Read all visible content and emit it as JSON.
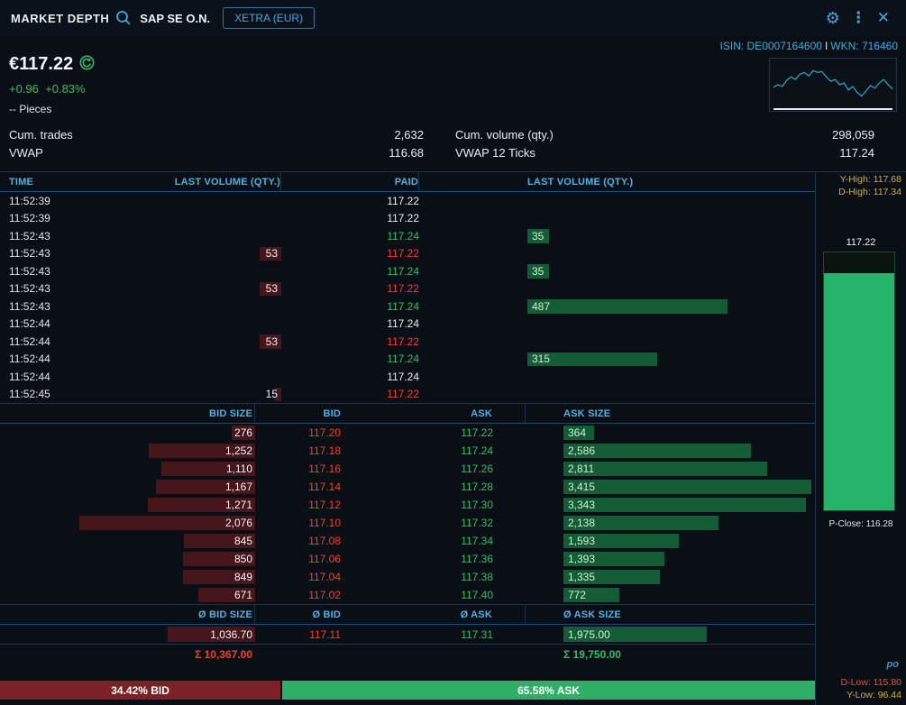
{
  "header": {
    "title": "MARKET DEPTH",
    "instrument": "SAP SE O.N.",
    "exchange": "XETRA (EUR)"
  },
  "ids": {
    "isin": "ISIN: DE0007164600",
    "sep": "I",
    "wkn": "WKN: 716460"
  },
  "quote": {
    "price": "€117.22",
    "change_abs": "+0.96",
    "change_pct": "+0.83%",
    "pieces": "-- Pieces"
  },
  "stats": {
    "cum_trades_label": "Cum. trades",
    "cum_trades": "2,632",
    "cum_volume_label": "Cum. volume (qty.)",
    "cum_volume": "298,059",
    "vwap_label": "VWAP",
    "vwap": "116.68",
    "vwap12_label": "VWAP 12 Ticks",
    "vwap12": "117.24"
  },
  "tape": {
    "headers": {
      "time": "TIME",
      "bid_vol": "LAST VOLUME (QTY.)",
      "paid": "PAID",
      "ask_vol": "LAST VOLUME (QTY.)"
    },
    "rows": [
      {
        "time": "11:52:39",
        "bid_vol": null,
        "bid_vol_val": 0,
        "paid": "117.22",
        "paid_color": "white",
        "ask_vol": null,
        "ask_vol_val": 0
      },
      {
        "time": "11:52:39",
        "bid_vol": null,
        "bid_vol_val": 0,
        "paid": "117.22",
        "paid_color": "white",
        "ask_vol": null,
        "ask_vol_val": 0
      },
      {
        "time": "11:52:43",
        "bid_vol": null,
        "bid_vol_val": 0,
        "paid": "117.24",
        "paid_color": "green",
        "ask_vol": "35",
        "ask_vol_val": 35
      },
      {
        "time": "11:52:43",
        "bid_vol": "53",
        "bid_vol_val": 53,
        "paid": "117.22",
        "paid_color": "red",
        "ask_vol": null,
        "ask_vol_val": 0
      },
      {
        "time": "11:52:43",
        "bid_vol": null,
        "bid_vol_val": 0,
        "paid": "117.24",
        "paid_color": "green",
        "ask_vol": "35",
        "ask_vol_val": 35
      },
      {
        "time": "11:52:43",
        "bid_vol": "53",
        "bid_vol_val": 53,
        "paid": "117.22",
        "paid_color": "red",
        "ask_vol": null,
        "ask_vol_val": 0
      },
      {
        "time": "11:52:43",
        "bid_vol": null,
        "bid_vol_val": 0,
        "paid": "117.24",
        "paid_color": "green",
        "ask_vol": "487",
        "ask_vol_val": 487
      },
      {
        "time": "11:52:44",
        "bid_vol": null,
        "bid_vol_val": 0,
        "paid": "117.24",
        "paid_color": "white",
        "ask_vol": null,
        "ask_vol_val": 0
      },
      {
        "time": "11:52:44",
        "bid_vol": "53",
        "bid_vol_val": 53,
        "paid": "117.22",
        "paid_color": "red",
        "ask_vol": null,
        "ask_vol_val": 0
      },
      {
        "time": "11:52:44",
        "bid_vol": null,
        "bid_vol_val": 0,
        "paid": "117.24",
        "paid_color": "green",
        "ask_vol": "315",
        "ask_vol_val": 315
      },
      {
        "time": "11:52:44",
        "bid_vol": null,
        "bid_vol_val": 0,
        "paid": "117.24",
        "paid_color": "white",
        "ask_vol": null,
        "ask_vol_val": 0
      },
      {
        "time": "11:52:45",
        "bid_vol": "15",
        "bid_vol_val": 15,
        "paid": "117.22",
        "paid_color": "red",
        "ask_vol": null,
        "ask_vol_val": 0
      }
    ]
  },
  "depth": {
    "headers": {
      "bid_size": "BID SIZE",
      "bid": "BID",
      "ask": "ASK",
      "ask_size": "ASK SIZE"
    },
    "rows": [
      {
        "bid_size": "276",
        "bid_size_val": 276,
        "bid": "117.20",
        "ask": "117.22",
        "ask_size": "364",
        "ask_size_val": 364
      },
      {
        "bid_size": "1,252",
        "bid_size_val": 1252,
        "bid": "117.18",
        "ask": "117.24",
        "ask_size": "2,586",
        "ask_size_val": 2586
      },
      {
        "bid_size": "1,110",
        "bid_size_val": 1110,
        "bid": "117.16",
        "ask": "117.26",
        "ask_size": "2,811",
        "ask_size_val": 2811
      },
      {
        "bid_size": "1,167",
        "bid_size_val": 1167,
        "bid": "117.14",
        "ask": "117.28",
        "ask_size": "3,415",
        "ask_size_val": 3415
      },
      {
        "bid_size": "1,271",
        "bid_size_val": 1271,
        "bid": "117.12",
        "ask": "117.30",
        "ask_size": "3,343",
        "ask_size_val": 3343
      },
      {
        "bid_size": "2,076",
        "bid_size_val": 2076,
        "bid": "117.10",
        "ask": "117.32",
        "ask_size": "2,138",
        "ask_size_val": 2138
      },
      {
        "bid_size": "845",
        "bid_size_val": 845,
        "bid": "117.08",
        "ask": "117.34",
        "ask_size": "1,593",
        "ask_size_val": 1593
      },
      {
        "bid_size": "850",
        "bid_size_val": 850,
        "bid": "117.06",
        "ask": "117.36",
        "ask_size": "1,393",
        "ask_size_val": 1393
      },
      {
        "bid_size": "849",
        "bid_size_val": 849,
        "bid": "117.04",
        "ask": "117.38",
        "ask_size": "1,335",
        "ask_size_val": 1335
      },
      {
        "bid_size": "671",
        "bid_size_val": 671,
        "bid": "117.02",
        "ask": "117.40",
        "ask_size": "772",
        "ask_size_val": 772
      }
    ],
    "avg_headers": {
      "bid_size": "Ø BID SIZE",
      "bid": "Ø BID",
      "ask": "Ø ASK",
      "ask_size": "Ø ASK SIZE"
    },
    "avg": {
      "bid_size": "1,036.70",
      "bid_size_val": 1036.7,
      "bid": "117.11",
      "ask": "117.31",
      "ask_size": "1,975.00",
      "ask_size_val": 1975
    },
    "sum_bid": "Σ 10,367.00",
    "sum_ask": "Σ 19,750.00"
  },
  "footer": {
    "bid_label": "34.42% BID",
    "ask_label": "65.58% ASK",
    "bid_pct": 34.42,
    "ask_pct": 65.58
  },
  "sidebar": {
    "y_high": "Y-High: 117.68",
    "d_high": "D-High: 117.34",
    "current": "117.22",
    "p_close": "P-Close: 116.28",
    "d_low": "D-Low: 115.80",
    "y_low": "Y-Low: 96.44",
    "logo": "po",
    "gauge_fill_pct": 92
  },
  "sparkline": {
    "points": [
      30,
      27,
      29,
      22,
      18,
      21,
      15,
      13,
      17,
      11,
      13,
      12,
      18,
      23,
      21,
      27,
      25,
      33,
      29,
      36,
      40,
      34,
      28,
      31,
      25,
      21,
      27,
      32
    ]
  },
  "colors": {
    "accent_blue": "#3fa9e0",
    "green_text": "#2fbe6b",
    "red_text": "#f0402f",
    "bid_bar": "#47161b",
    "ask_bar": "#145c36",
    "gauge_green": "#27b36a",
    "footer_bid": "#7e2127",
    "footer_ask": "#2eae66",
    "high_low_yellow": "#cfae3a"
  }
}
